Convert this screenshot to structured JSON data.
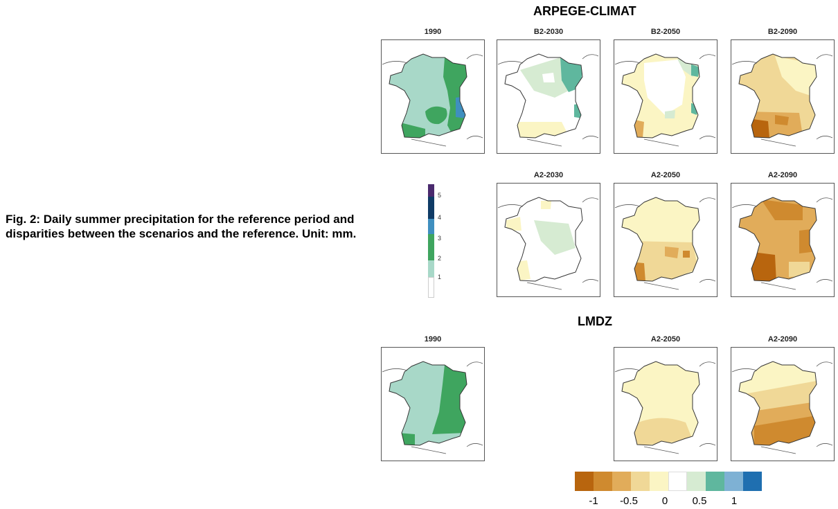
{
  "caption": "Fig. 2: Daily summer precipitation for the reference period and disparities between the scenarios and the reference. Unit: mm.",
  "sections": {
    "arpege": "ARPEGE-CLIMAT",
    "lmdz": "LMDZ"
  },
  "panels": {
    "arp_1990": "1990",
    "arp_b2_2030": "B2-2030",
    "arp_b2_2050": "B2-2050",
    "arp_b2_2090": "B2-2090",
    "arp_a2_2030": "A2-2030",
    "arp_a2_2050": "A2-2050",
    "arp_a2_2090": "A2-2090",
    "lmdz_1990": "1990",
    "lmdz_a2_2050": "A2-2050",
    "lmdz_a2_2090": "A2-2090"
  },
  "abs_legend": {
    "ticks": [
      "1",
      "2",
      "3",
      "4",
      "5"
    ],
    "colors": [
      "#ffffff",
      "#a8d8c8",
      "#3fa55f",
      "#3f8fbf",
      "#0f3b66",
      "#4a2a6e"
    ]
  },
  "diff_legend": {
    "ticks": [
      "-1",
      "-0.5",
      "0",
      "0.5",
      "1"
    ],
    "colors": [
      "#b8650e",
      "#cf8a2f",
      "#e1ac5a",
      "#f0d897",
      "#fbf5c4",
      "#ffffff",
      "#d6ebd2",
      "#5fb79e",
      "#7eb1d4",
      "#1f6fb0"
    ]
  }
}
